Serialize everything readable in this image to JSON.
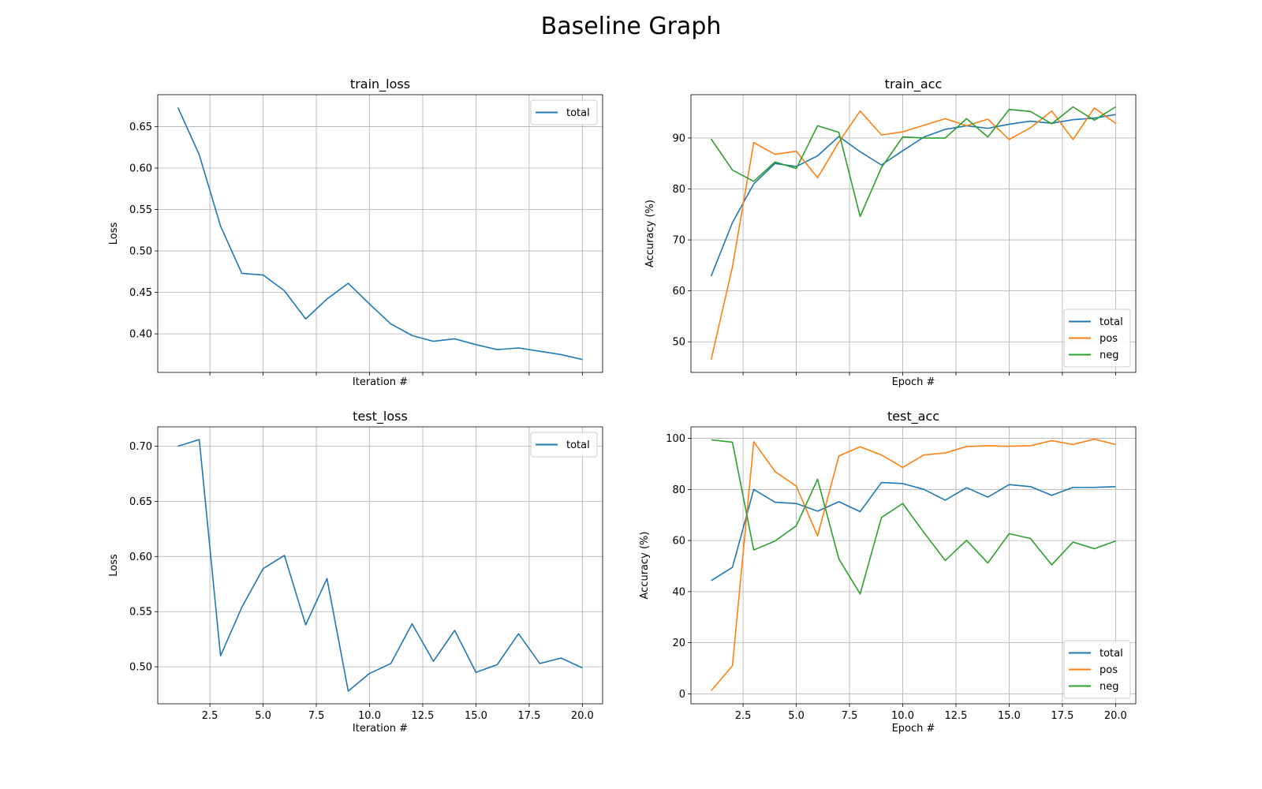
{
  "figure": {
    "title": "Baseline Graph"
  },
  "chart_data": [
    {
      "id": "train_loss",
      "type": "line",
      "title": "train_loss",
      "xlabel": "Iteration #",
      "ylabel": "Loss",
      "show_xticklabels": false,
      "xlim": [
        0.05,
        20.95
      ],
      "ylim": [
        0.3535,
        0.6885
      ],
      "xticks": [
        2.5,
        5.0,
        7.5,
        10.0,
        12.5,
        15.0,
        17.5,
        20.0
      ],
      "xtick_labels": [
        "2.5",
        "5.0",
        "7.5",
        "10.0",
        "12.5",
        "15.0",
        "17.5",
        "20.0"
      ],
      "yticks": [
        0.4,
        0.45,
        0.5,
        0.55,
        0.6,
        0.65
      ],
      "ytick_labels": [
        "0.40",
        "0.45",
        "0.50",
        "0.55",
        "0.60",
        "0.65"
      ],
      "grid": true,
      "legend": "upper-right",
      "x": [
        1,
        2,
        3,
        4,
        5,
        6,
        7,
        8,
        9,
        10,
        11,
        12,
        13,
        14,
        15,
        16,
        17,
        18,
        19,
        20
      ],
      "series": [
        {
          "name": "total",
          "color": "#1f77b4",
          "values": [
            0.673,
            0.616,
            0.53,
            0.473,
            0.471,
            0.452,
            0.418,
            0.442,
            0.461,
            0.436,
            0.412,
            0.398,
            0.391,
            0.394,
            0.387,
            0.381,
            0.383,
            0.379,
            0.375,
            0.369
          ]
        }
      ]
    },
    {
      "id": "train_acc",
      "type": "line",
      "title": "train_acc",
      "xlabel": "Epoch #",
      "ylabel": "Accuracy (%)",
      "show_xticklabels": false,
      "xlim": [
        0.05,
        20.95
      ],
      "ylim": [
        44.0,
        98.5
      ],
      "xticks": [
        2.5,
        5.0,
        7.5,
        10.0,
        12.5,
        15.0,
        17.5,
        20.0
      ],
      "xtick_labels": [
        "2.5",
        "5.0",
        "7.5",
        "10.0",
        "12.5",
        "15.0",
        "17.5",
        "20.0"
      ],
      "yticks": [
        50,
        60,
        70,
        80,
        90
      ],
      "ytick_labels": [
        "50",
        "60",
        "70",
        "80",
        "90"
      ],
      "grid": true,
      "legend": "lower-right",
      "x": [
        1,
        2,
        3,
        4,
        5,
        6,
        7,
        8,
        9,
        10,
        11,
        12,
        13,
        14,
        15,
        16,
        17,
        18,
        19,
        20
      ],
      "series": [
        {
          "name": "total",
          "color": "#1f77b4",
          "values": [
            62.9,
            73.4,
            81.0,
            85.0,
            84.4,
            86.5,
            90.3,
            87.3,
            84.7,
            87.5,
            90.2,
            91.7,
            92.4,
            91.9,
            92.7,
            93.3,
            92.9,
            93.6,
            93.9,
            94.6
          ]
        },
        {
          "name": "pos",
          "color": "#ff7f0e",
          "values": [
            46.5,
            64.7,
            89.1,
            86.8,
            87.4,
            82.2,
            89.2,
            95.3,
            90.6,
            91.2,
            92.5,
            93.8,
            92.4,
            93.7,
            89.7,
            92.0,
            95.3,
            89.7,
            95.9,
            92.9
          ]
        },
        {
          "name": "neg",
          "color": "#2ca02c",
          "values": [
            89.8,
            83.7,
            81.5,
            85.3,
            84.0,
            92.4,
            91.1,
            74.6,
            84.2,
            90.2,
            90.0,
            90.0,
            93.8,
            90.2,
            95.6,
            95.2,
            92.8,
            96.1,
            93.5,
            96.1
          ]
        }
      ]
    },
    {
      "id": "test_loss",
      "type": "line",
      "title": "test_loss",
      "xlabel": "Iteration #",
      "ylabel": "Loss",
      "show_xticklabels": true,
      "xlim": [
        0.05,
        20.95
      ],
      "ylim": [
        0.4665,
        0.7175
      ],
      "xticks": [
        2.5,
        5.0,
        7.5,
        10.0,
        12.5,
        15.0,
        17.5,
        20.0
      ],
      "xtick_labels": [
        "2.5",
        "5.0",
        "7.5",
        "10.0",
        "12.5",
        "15.0",
        "17.5",
        "20.0"
      ],
      "yticks": [
        0.5,
        0.55,
        0.6,
        0.65,
        0.7
      ],
      "ytick_labels": [
        "0.50",
        "0.55",
        "0.60",
        "0.65",
        "0.70"
      ],
      "grid": true,
      "legend": "upper-right",
      "x": [
        1,
        2,
        3,
        4,
        5,
        6,
        7,
        8,
        9,
        10,
        11,
        12,
        13,
        14,
        15,
        16,
        17,
        18,
        19,
        20
      ],
      "series": [
        {
          "name": "total",
          "color": "#1f77b4",
          "values": [
            0.7,
            0.706,
            0.51,
            0.554,
            0.589,
            0.601,
            0.538,
            0.58,
            0.478,
            0.494,
            0.503,
            0.539,
            0.505,
            0.533,
            0.495,
            0.502,
            0.53,
            0.503,
            0.508,
            0.499
          ]
        }
      ]
    },
    {
      "id": "test_acc",
      "type": "line",
      "title": "test_acc",
      "xlabel": "Epoch #",
      "ylabel": "Accuracy (%)",
      "show_xticklabels": true,
      "xlim": [
        0.05,
        20.95
      ],
      "ylim": [
        -3.9,
        104.5
      ],
      "xticks": [
        2.5,
        5.0,
        7.5,
        10.0,
        12.5,
        15.0,
        17.5,
        20.0
      ],
      "xtick_labels": [
        "2.5",
        "5.0",
        "7.5",
        "10.0",
        "12.5",
        "15.0",
        "17.5",
        "20.0"
      ],
      "yticks": [
        0,
        20,
        40,
        60,
        80,
        100
      ],
      "ytick_labels": [
        "0",
        "20",
        "40",
        "60",
        "80",
        "100"
      ],
      "grid": true,
      "legend": "lower-right",
      "x": [
        1,
        2,
        3,
        4,
        5,
        6,
        7,
        8,
        9,
        10,
        11,
        12,
        13,
        14,
        15,
        16,
        17,
        18,
        19,
        20
      ],
      "series": [
        {
          "name": "total",
          "color": "#1f77b4",
          "values": [
            44.3,
            49.5,
            80.0,
            75.0,
            74.5,
            71.5,
            75.2,
            71.3,
            82.7,
            82.3,
            80.0,
            75.8,
            80.7,
            77.0,
            81.9,
            81.1,
            77.7,
            80.8,
            80.8,
            81.1
          ]
        },
        {
          "name": "pos",
          "color": "#ff7f0e",
          "values": [
            1.2,
            11.0,
            98.7,
            87.0,
            81.3,
            61.8,
            93.1,
            96.7,
            93.5,
            88.6,
            93.5,
            94.3,
            96.8,
            97.1,
            96.9,
            97.1,
            99.1,
            97.6,
            99.7,
            97.6
          ]
        },
        {
          "name": "neg",
          "color": "#2ca02c",
          "values": [
            99.4,
            98.5,
            56.3,
            59.8,
            65.8,
            84.0,
            52.8,
            39.1,
            69.0,
            74.5,
            63.1,
            52.2,
            60.1,
            51.2,
            62.7,
            60.8,
            50.5,
            59.4,
            56.8,
            59.8
          ]
        }
      ]
    }
  ]
}
